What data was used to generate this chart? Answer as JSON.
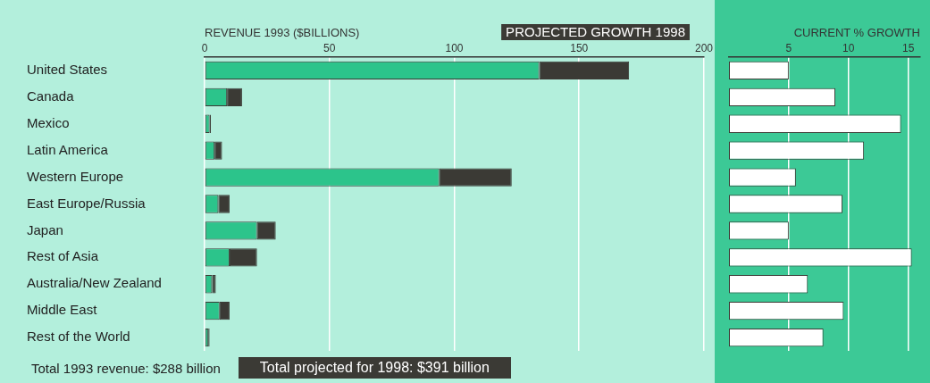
{
  "chart_data": [
    {
      "type": "bar",
      "orientation": "horizontal",
      "stacked": true,
      "xlabel": "REVENUE 1993 ($BILLIONS)",
      "categories": [
        "United States",
        "Canada",
        "Mexico",
        "Latin America",
        "Western Europe",
        "East Europe/Russia",
        "Japan",
        "Rest of Asia",
        "Australia/New Zealand",
        "Middle East",
        "Rest of the World"
      ],
      "series": [
        {
          "color": "#2cc48b",
          "values": [
            134,
            9,
            2,
            4,
            94,
            5.5,
            21,
            10,
            3,
            6,
            1.5
          ]
        },
        {
          "name": "PROJECTED GROWTH 1998",
          "color": "#3b3a35",
          "values": [
            36,
            6,
            0.5,
            3,
            29,
            4.5,
            7.5,
            11,
            1.5,
            4,
            0.5
          ]
        }
      ],
      "xlim": [
        0,
        200
      ],
      "xticks": [
        0,
        50,
        100,
        150,
        200
      ],
      "grid": "x",
      "legend": "top right",
      "annotations": [
        "Total 1993 revenue: $288 billion",
        "Total projected for 1998: $391 billion"
      ]
    },
    {
      "type": "bar",
      "orientation": "horizontal",
      "xlabel": "CURRENT % GROWTH",
      "categories": [
        null,
        null,
        null,
        null,
        null,
        null,
        null,
        null,
        null,
        null,
        null
      ],
      "values": [
        5,
        8.9,
        14.4,
        11.3,
        5.6,
        9.5,
        5,
        15.3,
        6.6,
        9.6,
        7.9
      ],
      "color": "#ffffff",
      "xlim": [
        0,
        16
      ],
      "xticks": [
        5,
        10,
        15
      ],
      "grid": "x",
      "tick_labels": "x"
    }
  ]
}
